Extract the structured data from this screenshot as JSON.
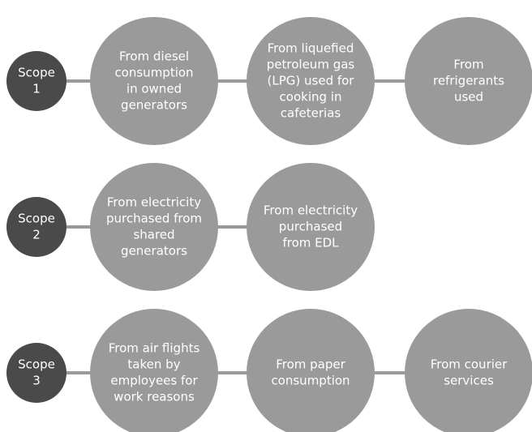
{
  "scopes": [
    {
      "label": [
        "Scope",
        "1"
      ],
      "items": [
        [
          "From diesel",
          "consumption",
          "in owned",
          "generators"
        ],
        [
          "From liquefied",
          "petroleum gas",
          "(LPG) used for",
          "cooking in",
          "cafeterias"
        ],
        [
          "From",
          "refrigerants",
          "used"
        ]
      ]
    },
    {
      "label": [
        "Scope",
        "2"
      ],
      "items": [
        [
          "From electricity",
          "purchased from",
          "shared",
          "generators"
        ],
        [
          "From electricity",
          "purchased",
          "from EDL"
        ]
      ]
    },
    {
      "label": [
        "Scope",
        "3"
      ],
      "items": [
        [
          "From air flights",
          "taken by",
          "employees for",
          "work reasons"
        ],
        [
          "From paper",
          "consumption"
        ],
        [
          "From courier",
          "services"
        ]
      ]
    }
  ]
}
